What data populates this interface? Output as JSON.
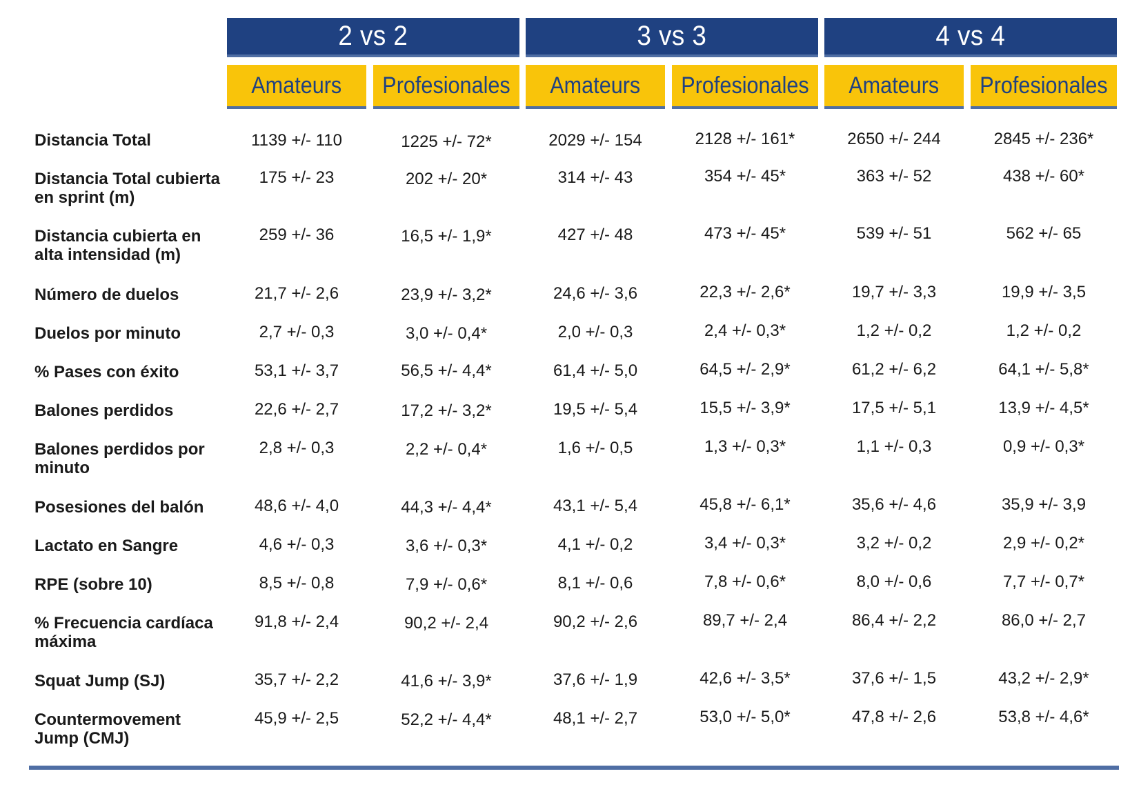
{
  "groups": [
    "2 vs 2",
    "3 vs 3",
    "4 vs 4"
  ],
  "subheaders": [
    "Amateurs",
    "Profesionales",
    "Amateurs",
    "Profesionales",
    "Amateurs",
    "Profesionales"
  ],
  "rows": [
    {
      "label": "Distancia Total",
      "values": [
        "1139 +/- 110",
        "1225 +/- 72*",
        "2029 +/- 154",
        "2128 +/-  161*",
        "2650 +/- 244",
        "2845 +/- 236*"
      ]
    },
    {
      "label": "Distancia Total cubierta en sprint (m)",
      "values": [
        "175 +/- 23",
        "202 +/- 20*",
        "314 +/- 43",
        "354 +/-  45*",
        "363 +/- 52",
        "438 +/- 60*"
      ]
    },
    {
      "label": "Distancia cubierta en alta intensidad (m)",
      "values": [
        "259 +/- 36",
        "16,5 +/- 1,9*",
        "427 +/- 48",
        "473 +/- 45*",
        "539 +/- 51",
        "562 +/-  65"
      ]
    },
    {
      "label": "Número de duelos",
      "values": [
        "21,7 +/- 2,6",
        "23,9 +/- 3,2*",
        "24,6 +/- 3,6",
        "22,3 +/- 2,6*",
        "19,7 +/- 3,3",
        "19,9 +/-  3,5"
      ]
    },
    {
      "label": "Duelos por minuto",
      "values": [
        "2,7 +/- 0,3",
        "3,0 +/- 0,4*",
        "2,0 +/- 0,3",
        "2,4 +/- 0,3*",
        "1,2 +/- 0,2",
        "1,2 +/-  0,2"
      ]
    },
    {
      "label": "% Pases con éxito",
      "values": [
        "53,1 +/-  3,7",
        "56,5 +/- 4,4*",
        "61,4 +/- 5,0",
        "64,5 +/- 2,9*",
        "61,2 +/- 6,2",
        "64,1 +/- 5,8*"
      ]
    },
    {
      "label": "Balones perdidos",
      "values": [
        "22,6 +/- 2,7",
        "17,2 +/- 3,2*",
        "19,5 +/- 5,4",
        "15,5 +/- 3,9*",
        "17,5 +/- 5,1",
        "13,9 +/-  4,5*"
      ]
    },
    {
      "label": "Balones perdidos por minuto",
      "values": [
        "2,8 +/- 0,3",
        "2,2 +/- 0,4*",
        "1,6 +/- 0,5",
        "1,3 +/- 0,3*",
        "1,1 +/- 0,3",
        "0,9 +/- 0,3*"
      ]
    },
    {
      "label": "Posesiones del balón",
      "values": [
        "48,6 +/-  4,0",
        "44,3 +/- 4,4*",
        "43,1 +/- 5,4",
        "45,8 +/-  6,1*",
        "35,6 +/- 4,6",
        "35,9 +/- 3,9"
      ]
    },
    {
      "label": "Lactato en Sangre",
      "values": [
        "4,6 +/- 0,3",
        "3,6 +/- 0,3*",
        "4,1 +/- 0,2",
        "3,4 +/- 0,3*",
        "3,2 +/- 0,2",
        "2,9 +/- 0,2*"
      ]
    },
    {
      "label": "RPE (sobre 10)",
      "values": [
        "8,5 +/- 0,8",
        "7,9 +/- 0,6*",
        "8,1 +/- 0,6",
        "7,8 +/- 0,6*",
        "8,0 +/- 0,6",
        "7,7 +/- 0,7*"
      ]
    },
    {
      "label": "% Frecuencia cardíaca máxima",
      "values": [
        "91,8 +/- 2,4",
        "90,2 +/- 2,4",
        "90,2 +/- 2,6",
        "89,7 +/- 2,4",
        "86,4 +/- 2,2",
        "86,0 +/- 2,7"
      ]
    },
    {
      "label": "Squat Jump (SJ)",
      "values": [
        "35,7 +/- 2,2",
        "41,6 +/- 3,9*",
        "37,6 +/- 1,9",
        "42,6 +/- 3,5*",
        "37,6 +/- 1,5",
        "43,2 +/- 2,9*"
      ]
    },
    {
      "label": "Countermovement Jump (CMJ)",
      "values": [
        "45,9 +/-  2,5",
        "52,2 +/- 4,4*",
        "48,1 +/- 2,7",
        "53,0 +/- 5,0*",
        "47,8 +/- 2,6",
        "53,8 +/- 4,6*"
      ]
    }
  ],
  "colors": {
    "navy": "#1f4181",
    "yellow": "#f9c40a",
    "rule": "#4f6ea4"
  }
}
